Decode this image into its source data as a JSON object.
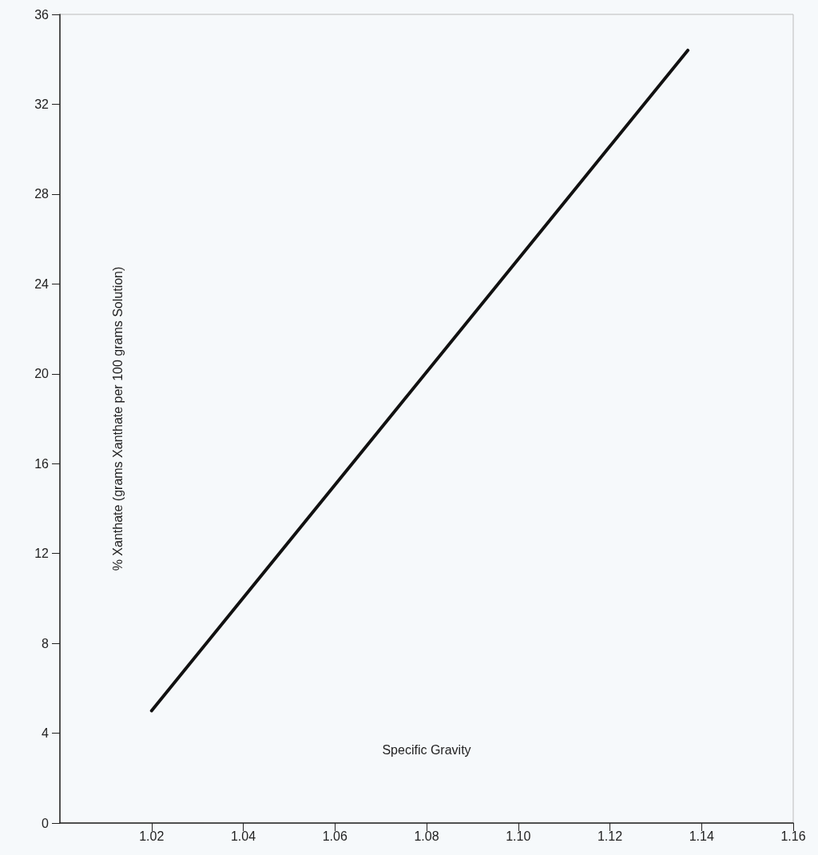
{
  "chart_data": {
    "type": "line",
    "xlabel": "Specific Gravity",
    "ylabel": "% Xanthate (grams Xanthate per 100 grams Solution)",
    "series": [
      {
        "color": "#111111",
        "x": [
          1.02,
          1.137
        ],
        "values": [
          5.0,
          34.4
        ]
      }
    ],
    "xlim": [
      1.0,
      1.16
    ],
    "xticks": [
      1.02,
      1.04,
      1.06,
      1.08,
      {
        "value": 1.1,
        "label": "1.10"
      },
      1.12,
      1.14,
      1.16
    ],
    "ylim": [
      0,
      36
    ],
    "yticks": [
      0,
      4,
      8,
      12,
      16,
      20,
      24,
      28,
      32,
      36
    ],
    "grid": false,
    "marker": "none",
    "line_style": "solid"
  }
}
